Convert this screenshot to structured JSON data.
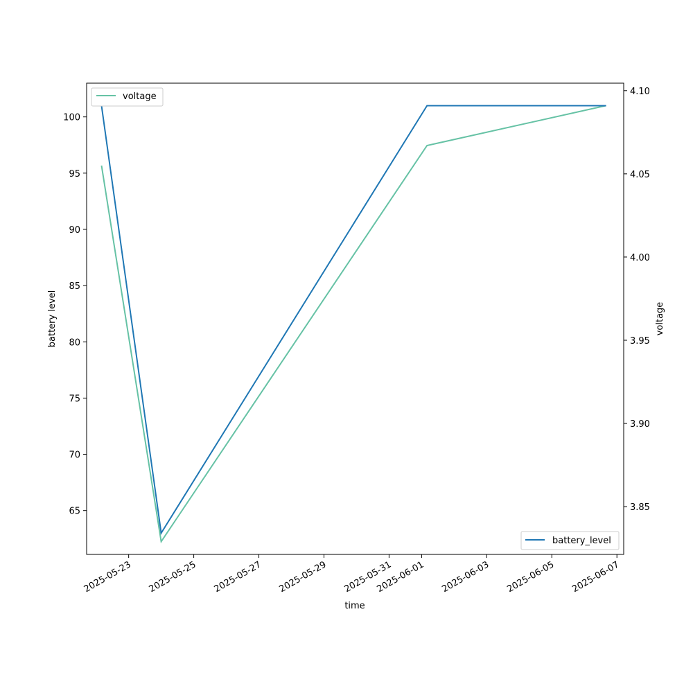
{
  "chart_data": {
    "type": "line",
    "x_label": "time",
    "y_left_label": "battery level",
    "y_right_label": "voltage",
    "x_ticks": [
      "2025-05-23",
      "2025-05-25",
      "2025-05-27",
      "2025-05-29",
      "2025-05-31",
      "2025-06-01",
      "2025-06-03",
      "2025-06-05",
      "2025-06-07"
    ],
    "y_left_ticks": [
      65,
      70,
      75,
      80,
      85,
      90,
      95,
      100
    ],
    "y_right_ticks": [
      "3.85",
      "3.90",
      "3.95",
      "4.00",
      "4.05",
      "4.10"
    ],
    "x_range": [
      "2025-05-21T17:00",
      "2025-06-07T05:00"
    ],
    "y_left_range": [
      61.1,
      103.0
    ],
    "y_right_range": [
      3.8213,
      4.1045
    ],
    "series": [
      {
        "name": "battery_level",
        "axis": "left",
        "color": "#1f77b4",
        "x": [
          "2025-05-22T04:00",
          "2025-05-24T00:00",
          "2025-06-01T04:00",
          "2025-06-06T16:00"
        ],
        "y": [
          101,
          63,
          101,
          101
        ]
      },
      {
        "name": "voltage",
        "axis": "right",
        "color": "#66c2a5",
        "x": [
          "2025-05-22T04:00",
          "2025-05-24T00:00",
          "2025-06-01T04:00",
          "2025-06-06T16:00"
        ],
        "y": [
          4.055,
          3.829,
          4.067,
          4.091
        ]
      }
    ],
    "legends": [
      {
        "series": "voltage",
        "placement": "upper-left"
      },
      {
        "series": "battery_level",
        "placement": "lower-right"
      }
    ],
    "grid": false
  }
}
